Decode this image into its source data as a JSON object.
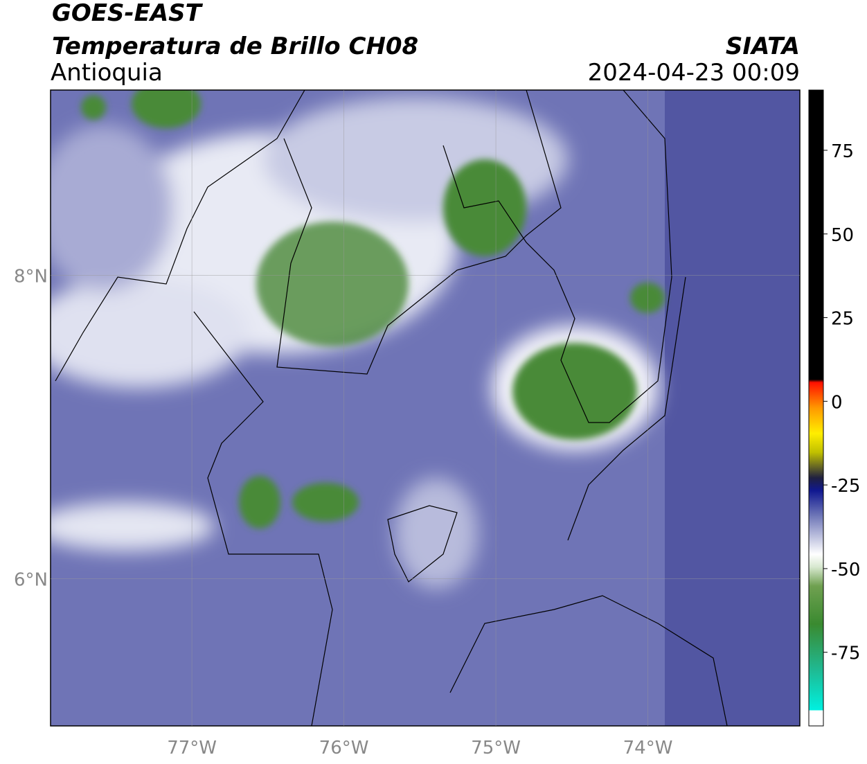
{
  "header": {
    "title": "GOES-EAST",
    "subtitle": "Temperatura de Brillo CH08",
    "region": "Antioquia",
    "source": "SIATA",
    "datetime": "2024-04-23 00:09"
  },
  "map": {
    "xlim": [
      -77.93,
      -73.0
    ],
    "ylim": [
      5.03,
      9.22
    ],
    "xticks": [
      {
        "value": -77,
        "label": "77°W"
      },
      {
        "value": -76,
        "label": "76°W"
      },
      {
        "value": -75,
        "label": "75°W"
      },
      {
        "value": -74,
        "label": "74°W"
      }
    ],
    "yticks": [
      {
        "value": 6,
        "label": "6°N"
      },
      {
        "value": 8,
        "label": "8°N"
      }
    ],
    "grid": true
  },
  "colorbar": {
    "lim": [
      -97,
      93
    ],
    "ticks": [
      75,
      50,
      25,
      0,
      -25,
      -50,
      -75
    ]
  }
}
